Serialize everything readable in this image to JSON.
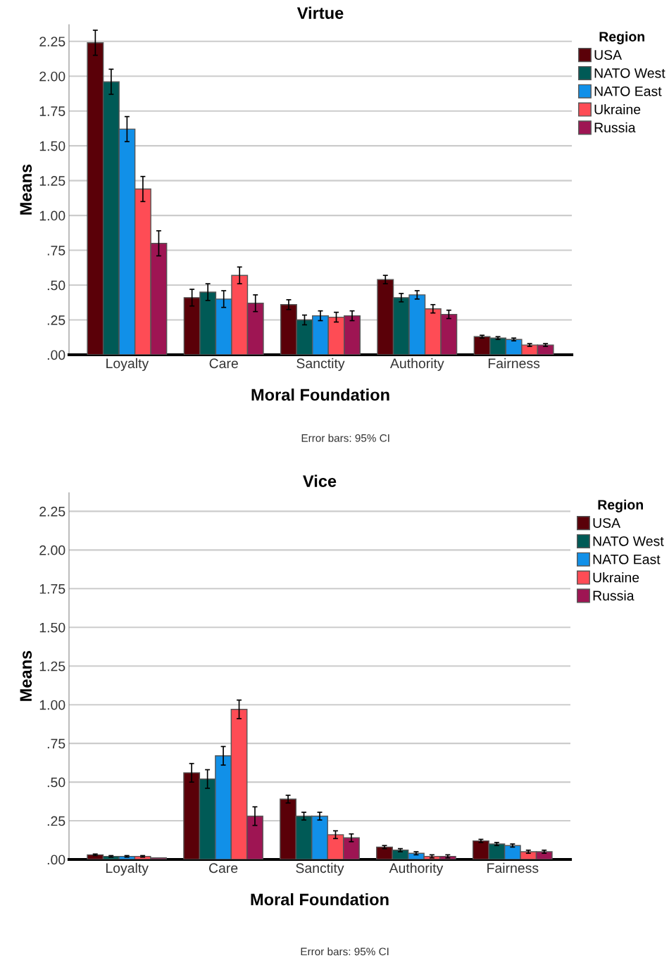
{
  "chart_data": [
    {
      "type": "bar",
      "title": "Virtue",
      "xlabel": "Moral Foundation",
      "ylabel": "Means",
      "legend_title": "Region",
      "legend": "top right",
      "grid": "y",
      "annotations": [
        "Error bars: 95% CI"
      ],
      "categories": [
        "Loyalty",
        "Care",
        "Sanctity",
        "Authority",
        "Fairness"
      ],
      "ylim": [
        0,
        2.37
      ],
      "yticks": [
        {
          "value": 0,
          "label": ".00"
        },
        {
          "value": 0.25,
          "label": ".25"
        },
        {
          "value": 0.5,
          "label": ".50"
        },
        {
          "value": 0.75,
          "label": ".75"
        },
        {
          "value": 1,
          "label": "1.00"
        },
        {
          "value": 1.25,
          "label": "1.25"
        },
        {
          "value": 1.5,
          "label": "1.50"
        },
        {
          "value": 1.75,
          "label": "1.75"
        },
        {
          "value": 2,
          "label": "2.00"
        },
        {
          "value": 2.25,
          "label": "2.25"
        }
      ],
      "series": [
        {
          "name": "USA",
          "color": "#5a0008",
          "values": [
            2.24,
            0.41,
            0.36,
            0.54,
            0.13
          ],
          "errors": [
            0.09,
            0.06,
            0.035,
            0.03,
            0.01
          ]
        },
        {
          "name": "NATO West",
          "color": "#005a56",
          "values": [
            1.96,
            0.45,
            0.25,
            0.41,
            0.12
          ],
          "errors": [
            0.09,
            0.06,
            0.035,
            0.03,
            0.01
          ]
        },
        {
          "name": "NATO East",
          "color": "#1190e8",
          "values": [
            1.62,
            0.4,
            0.28,
            0.43,
            0.11
          ],
          "errors": [
            0.09,
            0.06,
            0.035,
            0.03,
            0.01
          ]
        },
        {
          "name": "Ukraine",
          "color": "#fe4c55",
          "values": [
            1.19,
            0.57,
            0.27,
            0.33,
            0.07
          ],
          "errors": [
            0.09,
            0.06,
            0.035,
            0.03,
            0.01
          ]
        },
        {
          "name": "Russia",
          "color": "#9e1553",
          "values": [
            0.8,
            0.37,
            0.28,
            0.29,
            0.07
          ],
          "errors": [
            0.09,
            0.06,
            0.035,
            0.03,
            0.01
          ]
        }
      ]
    },
    {
      "type": "bar",
      "title": "Vice",
      "xlabel": "Moral Foundation",
      "ylabel": "Means",
      "legend_title": "Region",
      "legend": "top right",
      "grid": "y",
      "annotations": [
        "Error bars: 95% CI"
      ],
      "categories": [
        "Loyalty",
        "Care",
        "Sanctity",
        "Authority",
        "Fairness"
      ],
      "ylim": [
        0,
        2.37
      ],
      "yticks": [
        {
          "value": 0,
          "label": ".00"
        },
        {
          "value": 0.25,
          "label": ".25"
        },
        {
          "value": 0.5,
          "label": ".50"
        },
        {
          "value": 0.75,
          "label": ".75"
        },
        {
          "value": 1,
          "label": "1.00"
        },
        {
          "value": 1.25,
          "label": "1.25"
        },
        {
          "value": 1.5,
          "label": "1.50"
        },
        {
          "value": 1.75,
          "label": "1.75"
        },
        {
          "value": 2,
          "label": "2.00"
        },
        {
          "value": 2.25,
          "label": "2.25"
        }
      ],
      "series": [
        {
          "name": "USA",
          "color": "#5a0008",
          "values": [
            0.03,
            0.56,
            0.39,
            0.08,
            0.12
          ],
          "errors": [
            0.005,
            0.06,
            0.025,
            0.01,
            0.01
          ]
        },
        {
          "name": "NATO West",
          "color": "#005a56",
          "values": [
            0.02,
            0.52,
            0.28,
            0.06,
            0.1
          ],
          "errors": [
            0.005,
            0.06,
            0.025,
            0.01,
            0.01
          ]
        },
        {
          "name": "NATO East",
          "color": "#1190e8",
          "values": [
            0.02,
            0.67,
            0.28,
            0.04,
            0.09
          ],
          "errors": [
            0.005,
            0.06,
            0.025,
            0.01,
            0.01
          ]
        },
        {
          "name": "Ukraine",
          "color": "#fe4c55",
          "values": [
            0.02,
            0.97,
            0.16,
            0.02,
            0.05
          ],
          "errors": [
            0.005,
            0.06,
            0.025,
            0.01,
            0.01
          ]
        },
        {
          "name": "Russia",
          "color": "#9e1553",
          "values": [
            0.01,
            0.28,
            0.14,
            0.02,
            0.05
          ],
          "errors": [
            null,
            0.06,
            0.025,
            0.01,
            0.01
          ]
        }
      ]
    }
  ]
}
